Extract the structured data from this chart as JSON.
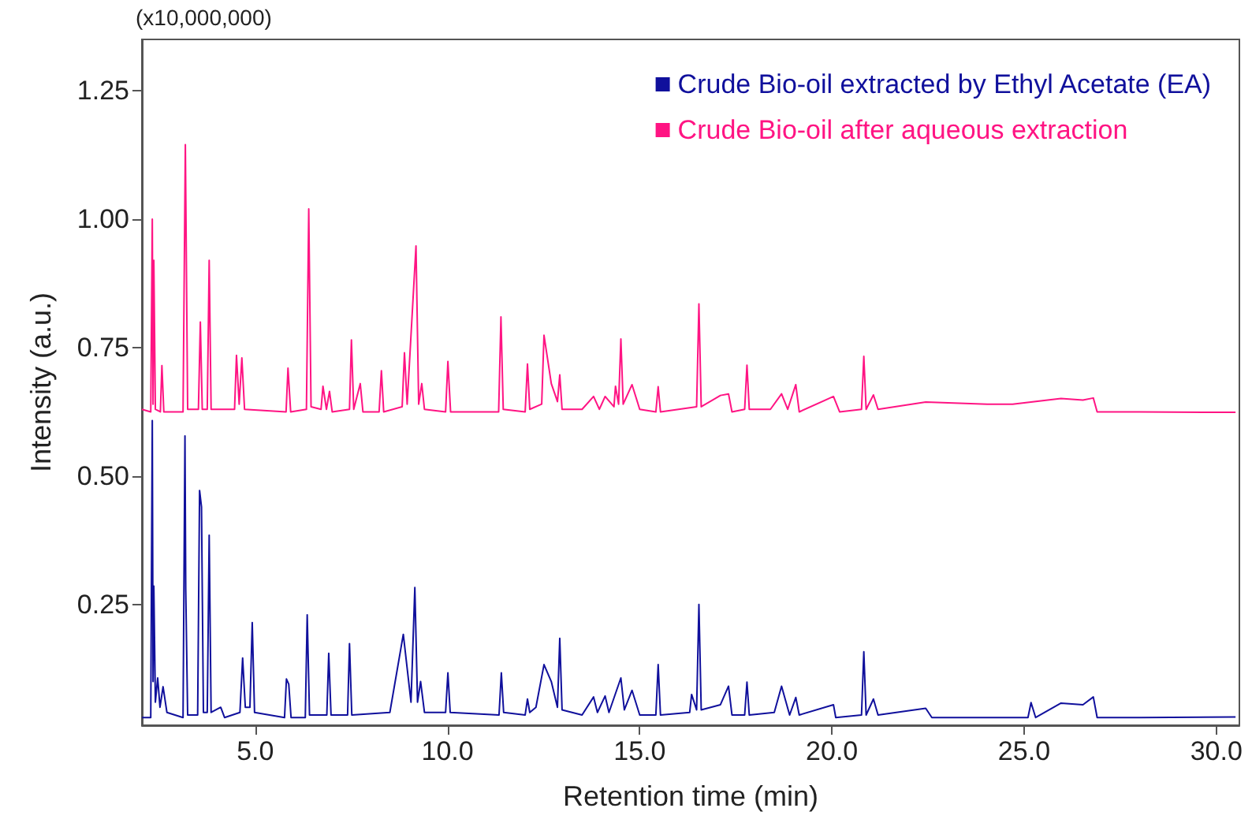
{
  "chart_data": {
    "type": "line",
    "xlabel": "Retention time (min)",
    "ylabel": "Intensity (a.u.)",
    "annotations": [
      "(x10,000,000)"
    ],
    "xlim": [
      2.05,
      30.6
    ],
    "ylim": [
      0.015,
      1.35
    ],
    "xticks": [
      {
        "value": 5,
        "label": "5.0"
      },
      {
        "value": 10,
        "label": "10.0"
      },
      {
        "value": 15,
        "label": "15.0"
      },
      {
        "value": 20,
        "label": "20.0"
      },
      {
        "value": 25,
        "label": "25.0"
      },
      {
        "value": 30,
        "label": "30.0"
      }
    ],
    "yticks": [
      {
        "value": 0.25,
        "label": "0.25"
      },
      {
        "value": 0.5,
        "label": "0.50"
      },
      {
        "value": 0.75,
        "label": "0.75"
      },
      {
        "value": 1,
        "label": "1.00"
      },
      {
        "value": 1.25,
        "label": "1.25"
      }
    ],
    "grid": false,
    "legend": "top right",
    "marker": "none",
    "line_style": "solid",
    "series": [
      {
        "name": "Crude Bio-oil extracted by Ethyl Acetate (EA)",
        "color": "#10109c",
        "x": [
          2.05,
          2.28,
          2.32,
          2.34,
          2.36,
          2.4,
          2.46,
          2.52,
          2.6,
          2.7,
          3.12,
          3.17,
          3.19,
          3.24,
          3.5,
          3.55,
          3.6,
          3.65,
          3.75,
          3.8,
          3.85,
          4.1,
          4.2,
          4.6,
          4.67,
          4.74,
          4.86,
          4.92,
          4.98,
          5.76,
          5.81,
          5.87,
          5.93,
          6.3,
          6.35,
          6.41,
          6.86,
          6.91,
          6.97,
          7.4,
          7.45,
          7.51,
          8.5,
          8.85,
          9.05,
          9.15,
          9.22,
          9.3,
          9.4,
          9.95,
          10.01,
          10.07,
          11.34,
          11.4,
          11.46,
          12.02,
          12.08,
          12.14,
          12.3,
          12.51,
          12.7,
          12.86,
          12.92,
          12.98,
          13.5,
          13.8,
          13.9,
          14.1,
          14.2,
          14.51,
          14.6,
          14.8,
          15.0,
          15.42,
          15.48,
          15.54,
          16.3,
          16.35,
          16.48,
          16.54,
          16.6,
          17.1,
          17.31,
          17.4,
          17.73,
          17.79,
          17.85,
          18.5,
          18.69,
          18.9,
          19.06,
          19.15,
          20.04,
          20.1,
          20.77,
          20.83,
          20.89,
          21.08,
          21.2,
          22.44,
          22.6,
          25.1,
          25.18,
          25.3,
          25.96,
          26.53,
          26.8,
          26.9,
          28.0,
          30.5
        ],
        "values": [
          0.03,
          0.03,
          0.608,
          0.1,
          0.286,
          0.06,
          0.107,
          0.05,
          0.09,
          0.04,
          0.03,
          0.578,
          0.28,
          0.035,
          0.035,
          0.472,
          0.44,
          0.04,
          0.04,
          0.385,
          0.04,
          0.05,
          0.03,
          0.04,
          0.146,
          0.05,
          0.05,
          0.215,
          0.04,
          0.03,
          0.105,
          0.095,
          0.03,
          0.03,
          0.23,
          0.035,
          0.035,
          0.155,
          0.035,
          0.035,
          0.174,
          0.035,
          0.04,
          0.192,
          0.06,
          0.283,
          0.06,
          0.1,
          0.04,
          0.04,
          0.117,
          0.04,
          0.035,
          0.117,
          0.04,
          0.035,
          0.066,
          0.04,
          0.05,
          0.133,
          0.1,
          0.05,
          0.184,
          0.045,
          0.035,
          0.07,
          0.04,
          0.072,
          0.04,
          0.107,
          0.045,
          0.083,
          0.035,
          0.035,
          0.133,
          0.035,
          0.04,
          0.075,
          0.045,
          0.25,
          0.045,
          0.055,
          0.091,
          0.035,
          0.035,
          0.099,
          0.035,
          0.04,
          0.091,
          0.035,
          0.069,
          0.035,
          0.055,
          0.03,
          0.035,
          0.158,
          0.035,
          0.066,
          0.035,
          0.048,
          0.03,
          0.03,
          0.059,
          0.03,
          0.058,
          0.055,
          0.07,
          0.03,
          0.03,
          0.031
        ]
      },
      {
        "name": "Crude Bio-oil after aqueous extraction",
        "color": "#ff1483",
        "x": [
          2.05,
          2.28,
          2.32,
          2.34,
          2.36,
          2.4,
          2.53,
          2.57,
          2.62,
          3.12,
          3.18,
          3.24,
          3.52,
          3.57,
          3.62,
          3.75,
          3.8,
          3.85,
          4.46,
          4.51,
          4.58,
          4.65,
          4.72,
          5.8,
          5.85,
          5.92,
          6.33,
          6.39,
          6.45,
          6.71,
          6.76,
          6.85,
          6.93,
          7.0,
          7.45,
          7.5,
          7.56,
          7.73,
          7.8,
          8.22,
          8.28,
          8.34,
          8.82,
          8.88,
          8.95,
          9.18,
          9.25,
          9.33,
          9.4,
          9.95,
          10.01,
          10.08,
          11.33,
          11.39,
          11.45,
          12.02,
          12.08,
          12.14,
          12.45,
          12.51,
          12.7,
          12.86,
          12.92,
          12.98,
          13.5,
          13.8,
          13.95,
          14.1,
          14.33,
          14.37,
          14.45,
          14.51,
          14.57,
          14.8,
          15.0,
          15.42,
          15.48,
          15.54,
          16.48,
          16.54,
          16.6,
          17.1,
          17.31,
          17.4,
          17.73,
          17.79,
          17.85,
          18.4,
          18.69,
          18.85,
          19.06,
          19.15,
          20.04,
          20.2,
          20.77,
          20.83,
          20.89,
          21.08,
          21.2,
          22.44,
          24.04,
          24.7,
          25.96,
          26.53,
          26.8,
          26.9,
          28.0,
          30.5
        ],
        "values": [
          0.63,
          0.625,
          1.0,
          0.64,
          0.92,
          0.63,
          0.625,
          0.715,
          0.625,
          0.625,
          1.145,
          0.63,
          0.63,
          0.8,
          0.63,
          0.63,
          0.92,
          0.63,
          0.63,
          0.735,
          0.64,
          0.73,
          0.63,
          0.625,
          0.71,
          0.625,
          0.63,
          1.02,
          0.635,
          0.63,
          0.675,
          0.63,
          0.665,
          0.625,
          0.63,
          0.765,
          0.63,
          0.68,
          0.625,
          0.625,
          0.705,
          0.625,
          0.635,
          0.74,
          0.64,
          0.948,
          0.64,
          0.68,
          0.63,
          0.625,
          0.723,
          0.625,
          0.625,
          0.81,
          0.63,
          0.625,
          0.718,
          0.63,
          0.64,
          0.774,
          0.68,
          0.645,
          0.697,
          0.63,
          0.63,
          0.655,
          0.63,
          0.655,
          0.635,
          0.675,
          0.64,
          0.767,
          0.64,
          0.678,
          0.63,
          0.625,
          0.674,
          0.625,
          0.635,
          0.835,
          0.635,
          0.657,
          0.66,
          0.625,
          0.63,
          0.716,
          0.63,
          0.63,
          0.66,
          0.63,
          0.678,
          0.625,
          0.655,
          0.625,
          0.63,
          0.733,
          0.63,
          0.658,
          0.63,
          0.644,
          0.64,
          0.64,
          0.651,
          0.648,
          0.652,
          0.625,
          0.625,
          0.624
        ]
      }
    ]
  }
}
